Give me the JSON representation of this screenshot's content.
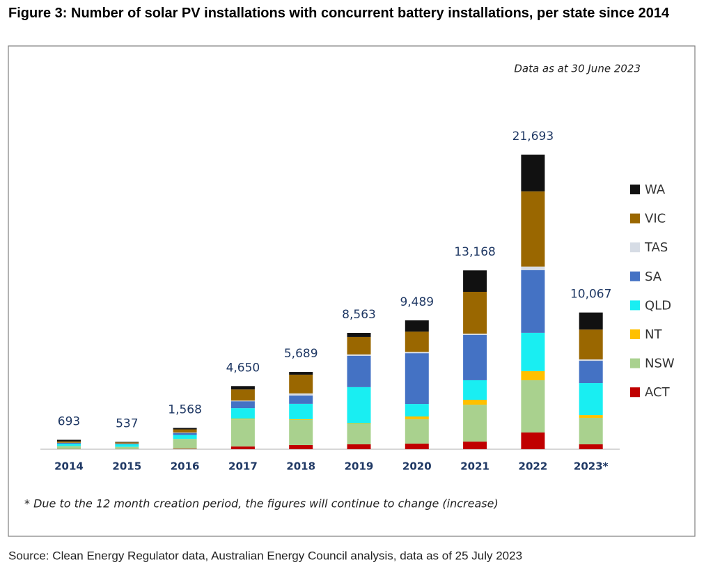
{
  "chart_data": {
    "type": "stacked_bar",
    "title": "Figure 3: Number of solar PV installations with concurrent battery installations, per state since 2014",
    "note": "Data as at 30 June 2023",
    "footnote": "* Due to the 12 month creation period, the figures will continue to change (increase)",
    "source": "Source: Clean Energy Regulator data, Australian Energy Council analysis, data as of 25 July 2023",
    "categories": [
      "2014",
      "2015",
      "2016",
      "2017",
      "2018",
      "2019",
      "2020",
      "2021",
      "2022",
      "2023*"
    ],
    "series": [
      {
        "name": "ACT",
        "color": "#c00000",
        "values": [
          15,
          10,
          30,
          200,
          310,
          360,
          410,
          560,
          1230,
          360
        ]
      },
      {
        "name": "NSW",
        "color": "#a9d18e",
        "values": [
          200,
          150,
          700,
          2000,
          1850,
          1490,
          1800,
          2720,
          3850,
          1950
        ]
      },
      {
        "name": "NT",
        "color": "#ffc000",
        "values": [
          10,
          10,
          20,
          50,
          50,
          50,
          200,
          360,
          670,
          200
        ]
      },
      {
        "name": "QLD",
        "color": "#19eef2",
        "values": [
          180,
          200,
          300,
          770,
          1130,
          2670,
          920,
          1440,
          2820,
          2360
        ]
      },
      {
        "name": "SA",
        "color": "#4472c4",
        "values": [
          60,
          40,
          150,
          510,
          620,
          2310,
          3740,
          3330,
          4620,
          1640
        ]
      },
      {
        "name": "TAS",
        "color": "#d6dce5",
        "values": [
          10,
          10,
          30,
          50,
          150,
          100,
          100,
          100,
          260,
          100
        ]
      },
      {
        "name": "VIC",
        "color": "#9a6700",
        "values": [
          100,
          80,
          230,
          820,
          1380,
          1280,
          1490,
          3080,
          5540,
          2200
        ]
      },
      {
        "name": "WA",
        "color": "#111111",
        "values": [
          118,
          37,
          108,
          250,
          199,
          303,
          829,
          1578,
          2703,
          1257
        ]
      }
    ],
    "totals": [
      693,
      537,
      1568,
      4650,
      5689,
      8563,
      9489,
      13168,
      21693,
      10067
    ],
    "total_labels": [
      "693",
      "537",
      "1,568",
      "4,650",
      "5,689",
      "8,563",
      "9,489",
      "13,168",
      "21,693",
      "10,067"
    ],
    "legend": "right"
  }
}
